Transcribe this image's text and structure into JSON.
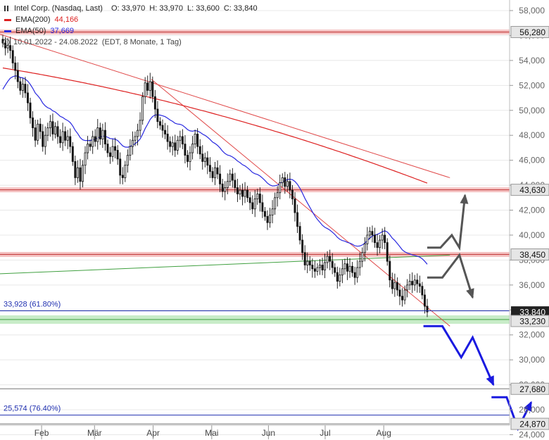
{
  "legend": {
    "title": "Intel Corp. (Nasdaq, Last)",
    "open": "O: 33,970",
    "high": "H: 33,970",
    "low": "L: 33,600",
    "close": "C: 33,840",
    "ema200_label": "EMA(200)",
    "ema200_value": "44,166",
    "ema50_label": "EMA(50)",
    "ema50_value": "37,669",
    "period": "10.01.2022 - 24.08.2022",
    "period_info": "(EDT, 8 Monate, 1 Tag)",
    "icons": [
      "bar-chart-icon",
      "clock-icon"
    ]
  },
  "colors": {
    "candle": "#111111",
    "ema200": "#dd2020",
    "ema50": "#2a2ae0",
    "trendline_red": "#e04848",
    "trendline_green": "#40a040",
    "resistance_band": "#f4c2c2",
    "support_band": "#c8ecc8",
    "fib_line": "#1f2fb0",
    "arrow_gray": "#555555",
    "arrow_blue": "#1a1ae0",
    "grid": "#e8e8e8"
  },
  "chart_data": {
    "type": "candlestick",
    "y_axis": {
      "ylim": [
        24,
        59
      ],
      "ticks": [
        24,
        26,
        28,
        30,
        32,
        34,
        36,
        38,
        40,
        42,
        44,
        46,
        48,
        50,
        52,
        54,
        56,
        58
      ],
      "tick_labels": [
        "24,000",
        "26,000",
        "28,000",
        "30,000",
        "32,000",
        "34,000",
        "36,000",
        "38,000",
        "40,000",
        "42,000",
        "44,000",
        "46,000",
        "48,000",
        "50,000",
        "52,000",
        "54,000",
        "56,000",
        "58,000"
      ]
    },
    "x_axis": {
      "start": "2022-01-10",
      "end": "2022-08-24",
      "months": [
        {
          "label": "Feb",
          "date": "2022-02-01"
        },
        {
          "label": "Mär",
          "date": "2022-03-01"
        },
        {
          "label": "Apr",
          "date": "2022-04-01"
        },
        {
          "label": "Mai",
          "date": "2022-05-02"
        },
        {
          "label": "Jun",
          "date": "2022-06-01"
        },
        {
          "label": "Jul",
          "date": "2022-07-01"
        },
        {
          "label": "Aug",
          "date": "2022-08-01"
        }
      ]
    },
    "closes": [
      55.4,
      55.0,
      55.2,
      54.8,
      53.8,
      53.2,
      52.3,
      51.6,
      52.1,
      51.4,
      50.6,
      49.4,
      48.6,
      47.6,
      48.9,
      48.3,
      47.1,
      48.0,
      48.6,
      49.1,
      48.1,
      48.7,
      47.9,
      47.4,
      48.3,
      47.6,
      47.9,
      47.1,
      45.9,
      44.6,
      45.4,
      44.3,
      45.6,
      46.6,
      47.3,
      47.1,
      47.9,
      47.5,
      48.6,
      47.7,
      48.4,
      47.3,
      46.6,
      46.3,
      47.1,
      46.8,
      46.1,
      44.8,
      44.6,
      45.6,
      46.4,
      47.1,
      47.6,
      47.9,
      48.4,
      49.2,
      51.1,
      52.2,
      51.6,
      52.3,
      51.1,
      50.1,
      49.1,
      48.8,
      48.4,
      48.1,
      47.5,
      47.1,
      47.4,
      46.8,
      47.6,
      47.9,
      47.3,
      46.4,
      45.9,
      46.6,
      47.3,
      48.1,
      47.1,
      46.5,
      45.9,
      46.2,
      45.6,
      45.1,
      44.6,
      45.4,
      44.9,
      44.1,
      43.5,
      43.8,
      44.3,
      44.9,
      44.4,
      43.8,
      43.3,
      43.6,
      43.1,
      43.6,
      43.0,
      42.6,
      42.1,
      42.9,
      43.3,
      42.6,
      41.9,
      41.5,
      41.0,
      41.6,
      42.1,
      43.0,
      43.4,
      44.2,
      44.6,
      43.9,
      44.3,
      43.6,
      42.9,
      41.8,
      40.7,
      39.6,
      38.6,
      37.6,
      37.9,
      37.6,
      37.3,
      37.1,
      37.4,
      37.6,
      37.2,
      37.8,
      38.3,
      37.9,
      37.4,
      37.0,
      36.3,
      36.8,
      37.3,
      37.7,
      37.1,
      37.5,
      37.0,
      36.6,
      37.4,
      37.9,
      38.6,
      39.3,
      40.0,
      40.3,
      40.0,
      39.4,
      39.0,
      39.6,
      40.0,
      39.4,
      37.9,
      36.4,
      35.7,
      36.2,
      35.6,
      35.1,
      34.8,
      35.6,
      36.0,
      36.3,
      36.0,
      36.4,
      36.1,
      35.9,
      35.2,
      34.3,
      33.84
    ],
    "last_close": 33.84,
    "ema200": {
      "start": [
        1,
        53.4
      ],
      "end": [
        209,
        44.166
      ]
    },
    "ema50": {
      "start": [
        1,
        51.3
      ],
      "end": [
        209,
        37.669
      ]
    },
    "horizontal_levels": [
      {
        "value": 56.28,
        "label": "56,280",
        "style": "resistance"
      },
      {
        "value": 43.63,
        "label": "43,630",
        "style": "resistance"
      },
      {
        "value": 38.45,
        "label": "38,450",
        "style": "resistance"
      },
      {
        "value": 33.23,
        "label": "33,230",
        "style": "support"
      },
      {
        "value": 27.68,
        "label": "27,680",
        "style": "thin"
      },
      {
        "value": 24.87,
        "label": "24,870",
        "style": "thin"
      }
    ],
    "fibonacci": [
      {
        "value": 33.928,
        "label": "33,928 (61.80%)"
      },
      {
        "value": 25.574,
        "label": "25,574 (76.40%)"
      }
    ],
    "last_price_label": "33,840",
    "axis_labels_under_levels": [
      "44,000",
      "38,000",
      "28,000"
    ],
    "trendlines": [
      {
        "from": {
          "date": "2022-01-10",
          "value": 56.1
        },
        "to": {
          "date": "2022-09-05",
          "value": 44.6
        },
        "color": "red"
      },
      {
        "from": {
          "date": "2022-03-31",
          "value": 52.5
        },
        "to": {
          "date": "2022-09-05",
          "value": 32.7
        },
        "color": "red"
      },
      {
        "from": {
          "date": "2022-01-10",
          "value": 36.9
        },
        "to": {
          "date": "2022-09-05",
          "value": 38.4
        },
        "color": "green"
      }
    ],
    "scenario_arrows": [
      {
        "color": "gray",
        "points": [
          {
            "date": "2022-08-24",
            "value": 39.0
          },
          {
            "date": "2022-08-31",
            "value": 39.0
          },
          {
            "date": "2022-09-06",
            "value": 40.0
          },
          {
            "date": "2022-09-10",
            "value": 39.0
          },
          {
            "date": "2022-09-13",
            "value": 43.2
          }
        ]
      },
      {
        "color": "gray",
        "points": [
          {
            "date": "2022-08-24",
            "value": 36.6
          },
          {
            "date": "2022-09-01",
            "value": 36.6
          },
          {
            "date": "2022-09-10",
            "value": 38.4
          },
          {
            "date": "2022-09-17",
            "value": 35.0
          }
        ]
      },
      {
        "color": "blue",
        "points": [
          {
            "date": "2022-08-22",
            "value": 32.7
          },
          {
            "date": "2022-09-01",
            "value": 32.7
          },
          {
            "date": "2022-09-11",
            "value": 30.2
          },
          {
            "date": "2022-09-17",
            "value": 31.8
          },
          {
            "date": "2022-09-28",
            "value": 28.0
          }
        ]
      },
      {
        "color": "blue",
        "points": [
          {
            "date": "2022-09-27",
            "value": 27.0
          },
          {
            "date": "2022-10-05",
            "value": 27.0
          },
          {
            "date": "2022-10-11",
            "value": 24.5
          },
          {
            "date": "2022-10-18",
            "value": 26.6
          }
        ]
      }
    ]
  }
}
